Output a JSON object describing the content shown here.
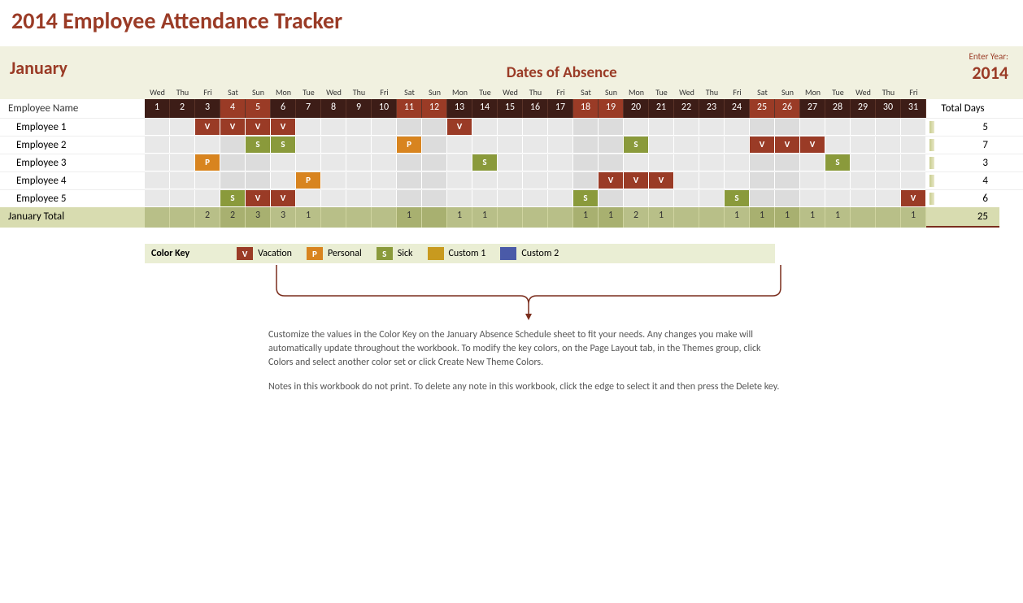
{
  "title": "2014 Employee Attendance Tracker",
  "month": "January",
  "dates_title": "Dates of Absence",
  "enter_year_label": "Enter Year:",
  "year": "2014",
  "name_header": "Employee Name",
  "total_days_header": "Total Days",
  "days_of_week": [
    "Wed",
    "Thu",
    "Fri",
    "Sat",
    "Sun",
    "Mon",
    "Tue",
    "Wed",
    "Thu",
    "Fri",
    "Sat",
    "Sun",
    "Mon",
    "Tue",
    "Wed",
    "Thu",
    "Fri",
    "Sat",
    "Sun",
    "Mon",
    "Tue",
    "Wed",
    "Thu",
    "Fri",
    "Sat",
    "Sun",
    "Mon",
    "Tue",
    "Wed",
    "Thu",
    "Fri"
  ],
  "day_numbers": [
    "1",
    "2",
    "3",
    "4",
    "5",
    "6",
    "7",
    "8",
    "9",
    "10",
    "11",
    "12",
    "13",
    "14",
    "15",
    "16",
    "17",
    "18",
    "19",
    "20",
    "21",
    "22",
    "23",
    "24",
    "25",
    "26",
    "27",
    "28",
    "29",
    "30",
    "31"
  ],
  "employees": [
    {
      "name": "Employee 1",
      "days": {
        "3": "V",
        "4": "V",
        "5": "V",
        "6": "V",
        "13": "V"
      },
      "total": "5"
    },
    {
      "name": "Employee 2",
      "days": {
        "5": "S",
        "6": "S",
        "11": "P",
        "20": "S",
        "25": "V",
        "26": "V",
        "27": "V"
      },
      "total": "7"
    },
    {
      "name": "Employee 3",
      "days": {
        "3": "P",
        "14": "S",
        "28": "S"
      },
      "total": "3"
    },
    {
      "name": "Employee 4",
      "days": {
        "7": "P",
        "19": "V",
        "20": "V",
        "21": "V"
      },
      "total": "4"
    },
    {
      "name": "Employee 5",
      "days": {
        "4": "S",
        "5": "V",
        "6": "V",
        "18": "S",
        "24": "S",
        "31": "V"
      },
      "total": "6"
    }
  ],
  "month_total_label": "January Total",
  "month_totals": [
    "",
    "",
    "2",
    "2",
    "3",
    "3",
    "1",
    "",
    "",
    "",
    "1",
    "",
    "1",
    "1",
    "",
    "",
    "",
    "1",
    "1",
    "2",
    "1",
    "",
    "",
    "1",
    "1",
    "1",
    "1",
    "1",
    "",
    "",
    "1"
  ],
  "grand_total": "25",
  "color_key": {
    "label": "Color Key",
    "items": [
      {
        "code": "V",
        "text": "Vacation",
        "swatch": "sw-V"
      },
      {
        "code": "P",
        "text": "Personal",
        "swatch": "sw-P"
      },
      {
        "code": "S",
        "text": "Sick",
        "swatch": "sw-S"
      },
      {
        "code": "",
        "text": "Custom 1",
        "swatch": "sw-C1"
      },
      {
        "code": "",
        "text": "Custom 2",
        "swatch": "sw-C2"
      }
    ]
  },
  "notes": {
    "p1": "Customize the values in the Color Key on the January Absence Schedule sheet to fit your needs. Any changes you make will automatically update throughout the workbook.  To modify the key colors, on the Page Layout tab, in the Themes group, click Colors and select another color set or click Create New Theme Colors.",
    "p2": "Notes in this workbook do not print. To delete any note in this workbook, click the edge to select it and then press the Delete key."
  },
  "colors": {
    "accent": "#9a3b26",
    "header_bg": "#f1f1e0",
    "date_dark": "#3d1d17",
    "vacation": "#9a3b26",
    "personal": "#d8841f",
    "sick": "#8a9a3b",
    "custom1": "#c89a1f",
    "custom2": "#4a5aa8",
    "total_row": "#b8bf88"
  }
}
